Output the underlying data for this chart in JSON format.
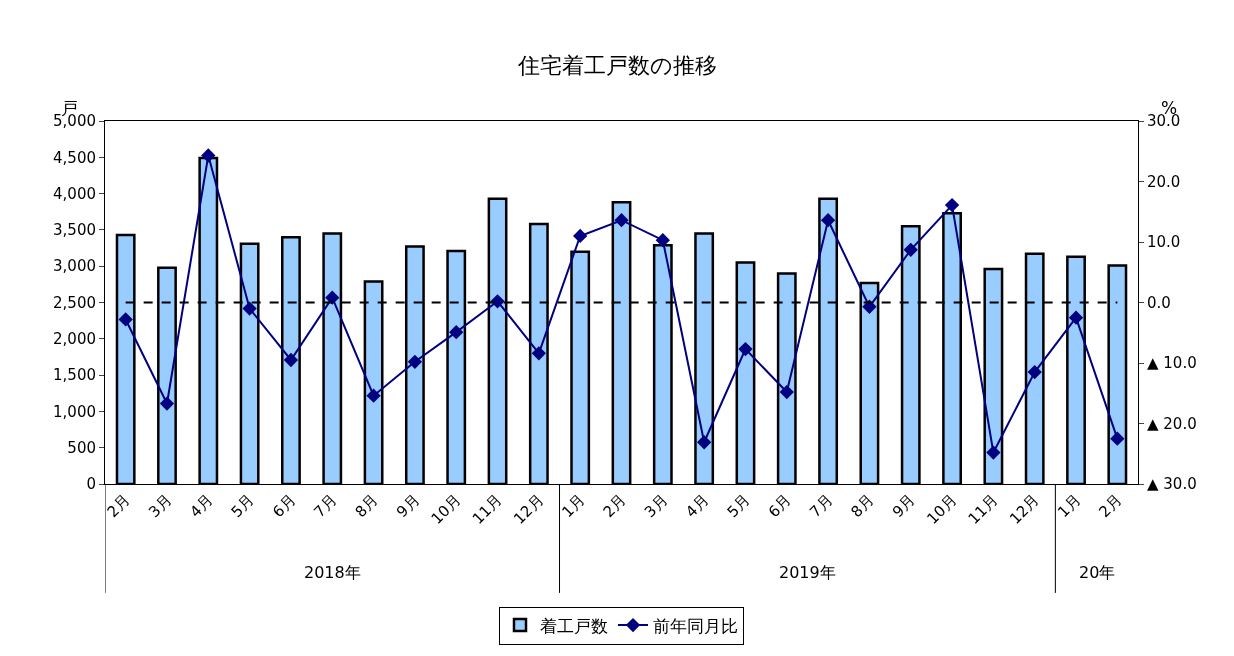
{
  "chart_data": {
    "type": "bar",
    "title": "住宅着工戸数の推移",
    "ylabel": "戸",
    "y2label": "%",
    "categories": [
      "2月",
      "3月",
      "4月",
      "5月",
      "6月",
      "7月",
      "8月",
      "9月",
      "10月",
      "11月",
      "12月",
      "1月",
      "2月",
      "3月",
      "4月",
      "5月",
      "6月",
      "7月",
      "8月",
      "9月",
      "10月",
      "11月",
      "12月",
      "1月",
      "2月"
    ],
    "series": [
      {
        "name": "着工戸数",
        "color": "#99ccff",
        "values": [
          3430,
          2980,
          4490,
          3310,
          3400,
          3450,
          2790,
          3270,
          3210,
          3930,
          3580,
          3200,
          3880,
          3290,
          3450,
          3050,
          2900,
          3930,
          2770,
          3550,
          3730,
          2960,
          3170,
          3130,
          3010
        ]
      },
      {
        "name": "前年同月比",
        "type": "line",
        "axis": "y2",
        "color": "#000080",
        "marker": "diamond",
        "values": [
          -2.8,
          -16.7,
          24.3,
          -1.0,
          -9.5,
          0.8,
          -15.4,
          -9.8,
          -4.9,
          0.2,
          -8.4,
          11.0,
          13.6,
          10.3,
          -23.1,
          -7.7,
          -14.8,
          13.6,
          -0.7,
          8.7,
          16.1,
          -24.8,
          -11.5,
          -2.5,
          -22.5
        ]
      }
    ],
    "ylim": [
      0,
      5000
    ],
    "yticks": [
      {
        "value": 0,
        "label": "0"
      },
      {
        "value": 500,
        "label": "500"
      },
      {
        "value": 1000,
        "label": "1,000"
      },
      {
        "value": 1500,
        "label": "1,500"
      },
      {
        "value": 2000,
        "label": "2,000"
      },
      {
        "value": 2500,
        "label": "2,500"
      },
      {
        "value": 3000,
        "label": "3,000"
      },
      {
        "value": 3500,
        "label": "3,500"
      },
      {
        "value": 4000,
        "label": "4,000"
      },
      {
        "value": 4500,
        "label": "4,500"
      },
      {
        "value": 5000,
        "label": "5,000"
      }
    ],
    "y2lim": [
      -30,
      30
    ],
    "y2ticks": [
      {
        "value": -30,
        "label": "▲ 30.0"
      },
      {
        "value": -20,
        "label": "▲ 20.0"
      },
      {
        "value": -10,
        "label": "▲ 10.0"
      },
      {
        "value": 0,
        "label": "0.0"
      },
      {
        "value": 10,
        "label": "10.0"
      },
      {
        "value": 20,
        "label": "20.0"
      },
      {
        "value": 30,
        "label": "30.0"
      }
    ],
    "ref_lines": [
      {
        "axis": "y2",
        "value": 0,
        "color": "#000000",
        "line_style": "dashed"
      }
    ],
    "annotations": [
      "2018年",
      "2019年",
      "20年"
    ],
    "legend": "bottom"
  }
}
